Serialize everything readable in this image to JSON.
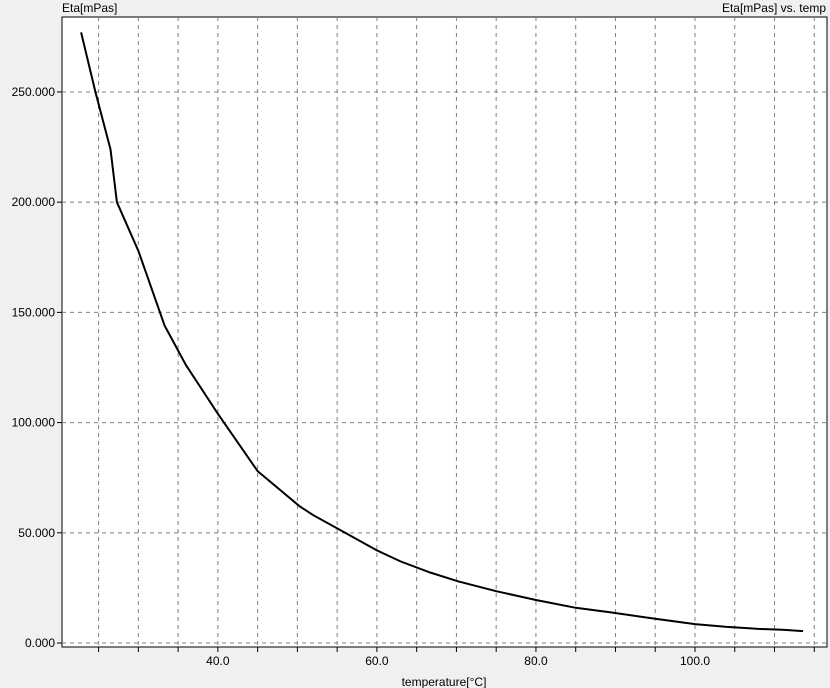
{
  "chart_data": {
    "type": "line",
    "title": "Eta[mPas] vs. temp",
    "xlabel": "temperature[°C]",
    "ylabel": "Eta[mPas]",
    "xlim": [
      20.4,
      116.6
    ],
    "ylim": [
      -1.8,
      284
    ],
    "x_ticks": [
      40.0,
      60.0,
      80.0,
      100.0
    ],
    "x_tick_labels": [
      "40.0",
      "60.0",
      "80.0",
      "100.0"
    ],
    "x_minor_step": 5,
    "y_ticks": [
      0,
      50,
      100,
      150,
      200,
      250
    ],
    "y_tick_labels": [
      "0.000",
      "50.000",
      "100.000",
      "150.000",
      "200.000",
      "250.000"
    ],
    "grid": true,
    "line_color": "#000000",
    "series": [
      {
        "x": [
          22.8,
          24.6,
          26.5,
          27.3,
          30,
          33.3,
          36,
          40,
          45,
          50.3,
          52,
          56,
          60,
          63,
          66.7,
          70.2,
          75,
          80,
          85,
          89.3,
          95,
          100,
          104,
          108,
          111,
          113.6
        ],
        "y": [
          277,
          250,
          224,
          200,
          178,
          144,
          126,
          104,
          78,
          62,
          58,
          50,
          42,
          37,
          32,
          28,
          23.5,
          19.5,
          16,
          14,
          11,
          8.6,
          7.3,
          6.4,
          6.0,
          5.4
        ]
      }
    ]
  }
}
